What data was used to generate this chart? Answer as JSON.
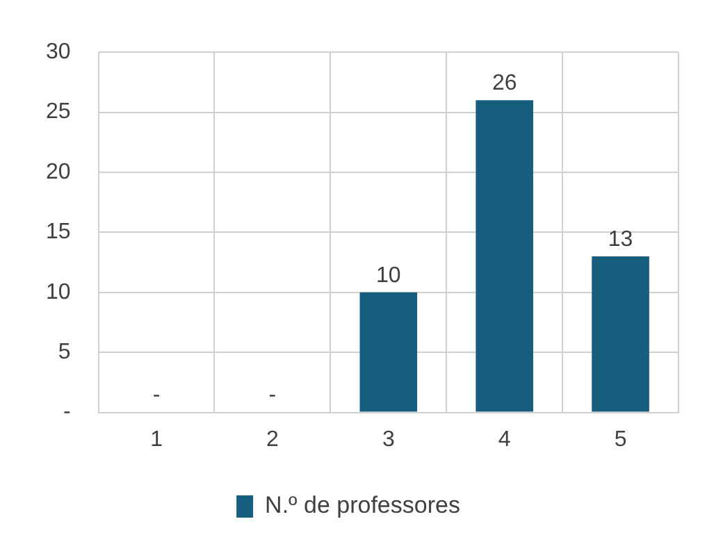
{
  "chart_data": {
    "type": "bar",
    "categories": [
      "1",
      "2",
      "3",
      "4",
      "5"
    ],
    "series": [
      {
        "name": "N.º de professores",
        "color": "#175e7e",
        "values": [
          0,
          0,
          10,
          26,
          13
        ]
      }
    ],
    "value_labels": [
      "-",
      "-",
      "10",
      "26",
      "13"
    ],
    "ylim": [
      0,
      30
    ],
    "yticks": [
      {
        "value": 0,
        "label": "-"
      },
      5,
      10,
      15,
      20,
      25,
      30
    ],
    "grid": true,
    "legend": "bottom"
  }
}
